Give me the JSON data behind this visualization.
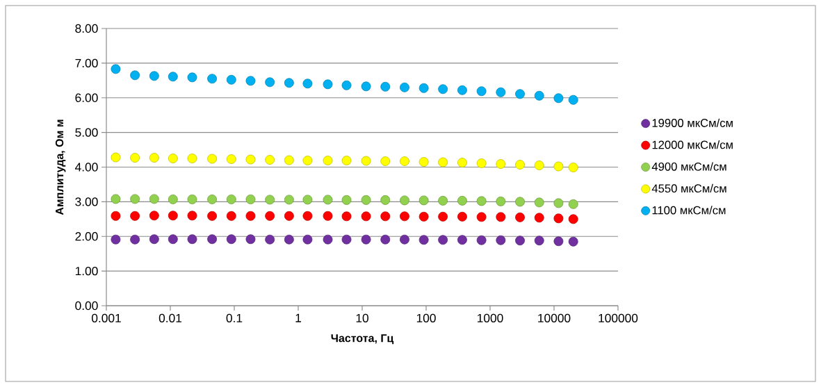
{
  "chart_data": {
    "type": "scatter",
    "xlabel": "Частота, Гц",
    "ylabel": "Амплитуда, Ом м",
    "x": [
      0.0014,
      0.0028,
      0.0056,
      0.011,
      0.022,
      0.045,
      0.09,
      0.18,
      0.36,
      0.72,
      1.4,
      2.9,
      5.7,
      11.5,
      23,
      46,
      92,
      183,
      367,
      734,
      1468,
      2936,
      5872,
      11744,
      20000
    ],
    "series": [
      {
        "name": "19900 мкСм/см",
        "color": "#7030a0",
        "values": [
          1.91,
          1.91,
          1.92,
          1.92,
          1.92,
          1.92,
          1.92,
          1.92,
          1.91,
          1.91,
          1.91,
          1.91,
          1.91,
          1.91,
          1.91,
          1.91,
          1.9,
          1.9,
          1.9,
          1.89,
          1.89,
          1.88,
          1.88,
          1.86,
          1.85
        ]
      },
      {
        "name": "12000 мкСм/см",
        "color": "#ff0000",
        "values": [
          2.59,
          2.59,
          2.6,
          2.6,
          2.6,
          2.59,
          2.59,
          2.59,
          2.59,
          2.59,
          2.59,
          2.59,
          2.58,
          2.58,
          2.58,
          2.58,
          2.57,
          2.57,
          2.57,
          2.56,
          2.56,
          2.55,
          2.54,
          2.52,
          2.5
        ]
      },
      {
        "name": "4900 мкСм/см",
        "color": "#92d050",
        "values": [
          3.08,
          3.08,
          3.08,
          3.07,
          3.07,
          3.07,
          3.07,
          3.07,
          3.06,
          3.06,
          3.06,
          3.06,
          3.05,
          3.05,
          3.05,
          3.04,
          3.04,
          3.03,
          3.03,
          3.02,
          3.01,
          3.0,
          2.98,
          2.96,
          2.93
        ]
      },
      {
        "name": "4550 мкСм/см",
        "color": "#ffff00",
        "values": [
          4.28,
          4.27,
          4.27,
          4.25,
          4.25,
          4.24,
          4.23,
          4.22,
          4.21,
          4.2,
          4.19,
          4.19,
          4.19,
          4.18,
          4.17,
          4.17,
          4.15,
          4.14,
          4.13,
          4.11,
          4.09,
          4.07,
          4.05,
          4.02,
          3.99
        ]
      },
      {
        "name": "1100 мкСм/см",
        "color": "#00b0f0",
        "values": [
          6.83,
          6.65,
          6.63,
          6.61,
          6.59,
          6.55,
          6.52,
          6.49,
          6.45,
          6.43,
          6.41,
          6.39,
          6.36,
          6.33,
          6.32,
          6.3,
          6.28,
          6.25,
          6.22,
          6.19,
          6.16,
          6.11,
          6.06,
          5.99,
          5.94
        ]
      }
    ],
    "log": "x",
    "xlim": [
      0.001,
      100000
    ],
    "xticks": [
      0.001,
      0.01,
      0.1,
      1,
      10,
      100,
      1000,
      10000,
      100000
    ],
    "ylim": [
      0,
      8
    ],
    "yticks": [
      {
        "value": 0,
        "label": "0.00"
      },
      {
        "value": 1,
        "label": "1.00"
      },
      {
        "value": 2,
        "label": "2.00"
      },
      {
        "value": 3,
        "label": "3.00"
      },
      {
        "value": 4,
        "label": "4.00"
      },
      {
        "value": 5,
        "label": "5.00"
      },
      {
        "value": 6,
        "label": "6.00"
      },
      {
        "value": 7,
        "label": "7.00"
      },
      {
        "value": 8,
        "label": "8.00"
      }
    ],
    "grid": "y",
    "legend": "right"
  }
}
